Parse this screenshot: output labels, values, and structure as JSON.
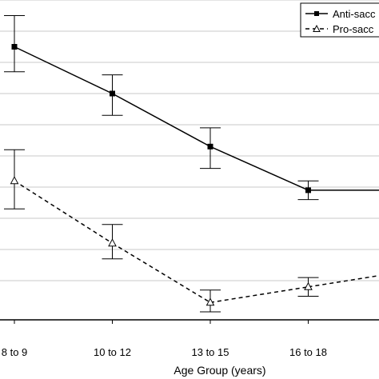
{
  "chart_data": {
    "type": "line",
    "xlabel": "Age Group (years)",
    "ylabel": "",
    "title": "",
    "categories": [
      "8 to 9",
      "10 to 12",
      "13 to 15",
      "16 to 18",
      ""
    ],
    "grid": "horizontal",
    "legend_position": "top-right",
    "ylim": [
      0,
      10
    ],
    "y_gridlines": [
      1,
      2,
      3,
      4,
      5,
      6,
      7,
      8,
      9,
      10
    ],
    "series": [
      {
        "name": "Anti-sacc",
        "marker": "filled-square",
        "line_style": "solid",
        "values": [
          8.5,
          7.0,
          5.3,
          3.9,
          3.9
        ],
        "error_low": [
          7.7,
          6.3,
          4.6,
          3.6,
          null
        ],
        "error_high": [
          9.5,
          7.6,
          5.9,
          4.2,
          null
        ]
      },
      {
        "name": "Pro-sacc",
        "marker": "open-triangle",
        "line_style": "dashed",
        "values": [
          4.2,
          2.2,
          0.3,
          0.8,
          1.3
        ],
        "error_low": [
          3.3,
          1.7,
          0.0,
          0.5,
          null
        ],
        "error_high": [
          5.2,
          2.8,
          0.7,
          1.1,
          null
        ]
      }
    ]
  }
}
